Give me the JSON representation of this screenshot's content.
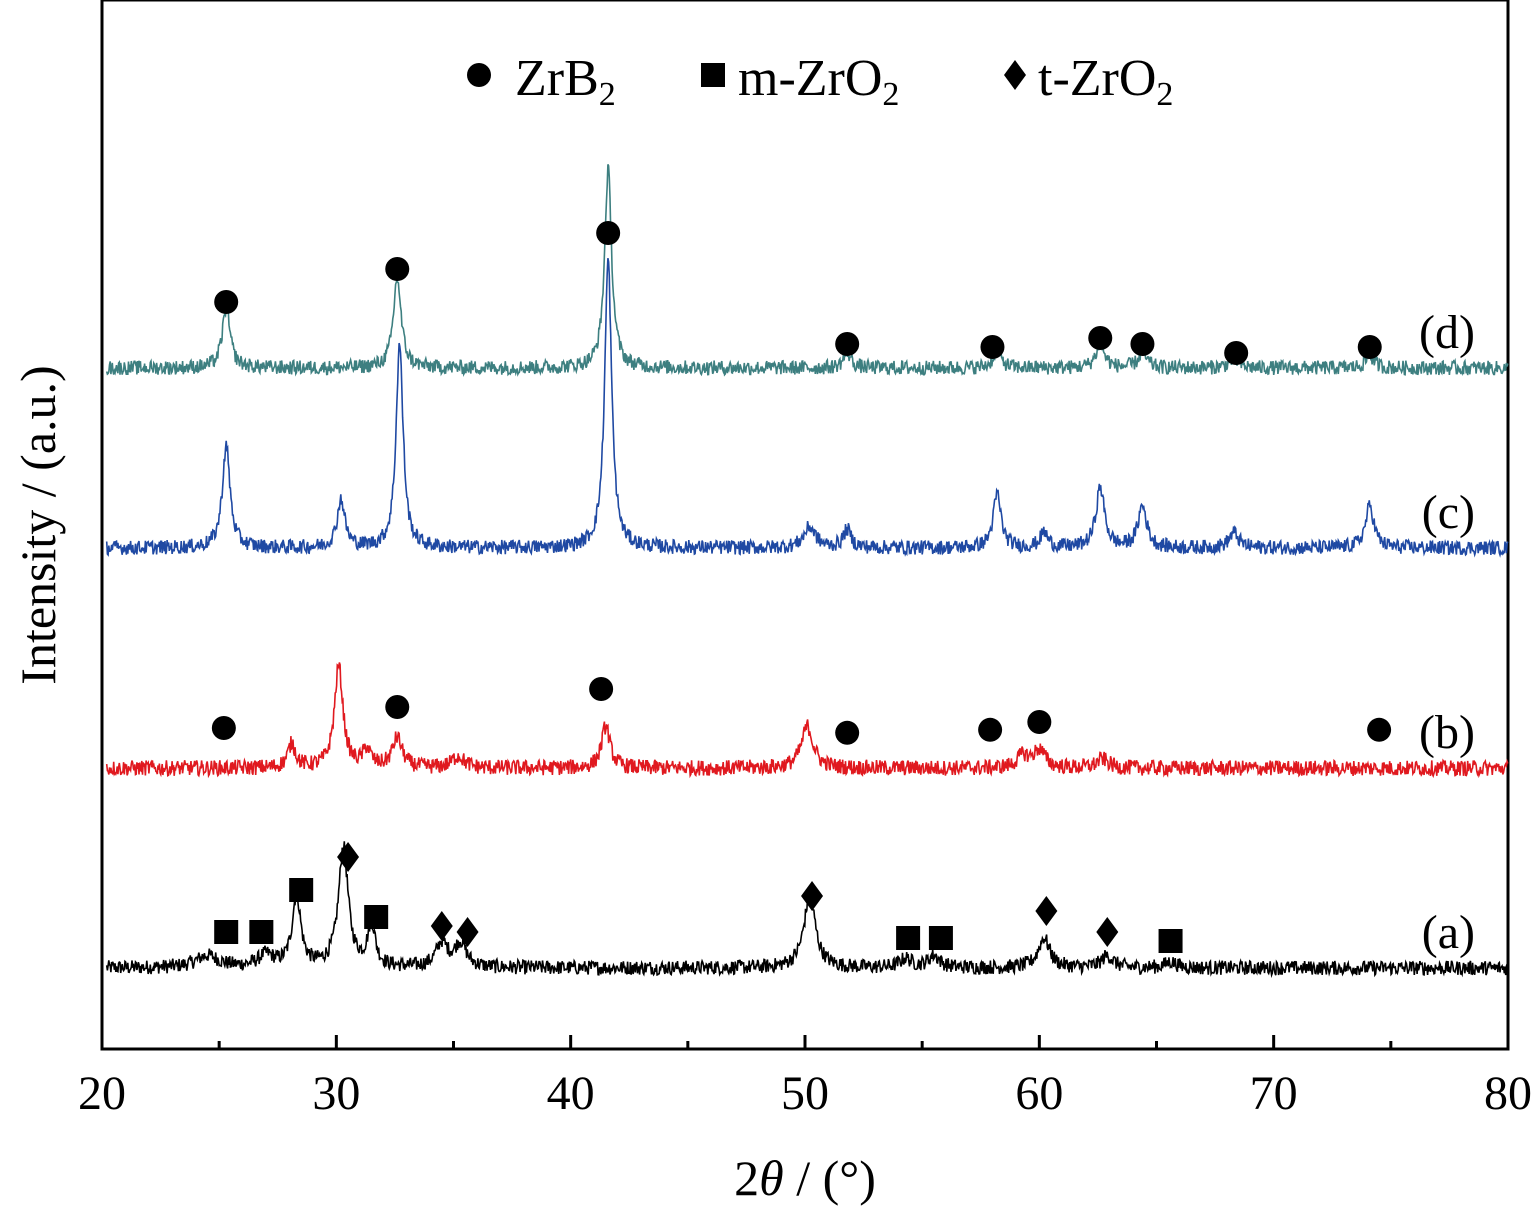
{
  "chart_data": {
    "type": "line",
    "xlabel_prefix": "2",
    "xlabel_symbol": "θ",
    "xlabel_suffix": " / (°)",
    "ylabel": "Intensity / (a.u.)",
    "xlim": [
      20,
      80
    ],
    "xticks": [
      20,
      30,
      40,
      50,
      60,
      70,
      80
    ],
    "xtick_labels": [
      "20",
      "30",
      "40",
      "50",
      "60",
      "70",
      "80"
    ],
    "grid": false,
    "legend_position": "top-center",
    "legend": [
      {
        "marker": "circle",
        "base": "ZrB",
        "sub": "2",
        "tail": ""
      },
      {
        "marker": "square",
        "base": "m-ZrO",
        "sub": "2",
        "tail": ""
      },
      {
        "marker": "diamond",
        "base": "t-ZrO",
        "sub": "2",
        "tail": ""
      }
    ],
    "series": [
      {
        "name": "(a)",
        "color": "#000000",
        "baseline": 0.0,
        "noise": 0.012,
        "peaks": [
          [
            24.5,
            0.02,
            0.6
          ],
          [
            27.0,
            0.02,
            0.4
          ],
          [
            28.3,
            0.12,
            0.22
          ],
          [
            30.3,
            0.2,
            0.25
          ],
          [
            31.5,
            0.07,
            0.2
          ],
          [
            34.5,
            0.04,
            0.3
          ],
          [
            35.3,
            0.04,
            0.3
          ],
          [
            50.2,
            0.12,
            0.3
          ],
          [
            54.3,
            0.015,
            0.3
          ],
          [
            55.5,
            0.02,
            0.3
          ],
          [
            60.2,
            0.05,
            0.3
          ],
          [
            62.9,
            0.02,
            0.3
          ],
          [
            65.6,
            0.01,
            0.3
          ]
        ],
        "markers": [
          {
            "shape": "square",
            "x": 25.3,
            "y": 0.06
          },
          {
            "shape": "square",
            "x": 26.8,
            "y": 0.06
          },
          {
            "shape": "square",
            "x": 28.5,
            "y": 0.13
          },
          {
            "shape": "square",
            "x": 31.7,
            "y": 0.085
          },
          {
            "shape": "diamond",
            "x": 30.5,
            "y": 0.185
          },
          {
            "shape": "diamond",
            "x": 34.5,
            "y": 0.07
          },
          {
            "shape": "diamond",
            "x": 35.6,
            "y": 0.06
          },
          {
            "shape": "diamond",
            "x": 50.3,
            "y": 0.12
          },
          {
            "shape": "square",
            "x": 54.4,
            "y": 0.05
          },
          {
            "shape": "square",
            "x": 55.8,
            "y": 0.05
          },
          {
            "shape": "diamond",
            "x": 60.3,
            "y": 0.095
          },
          {
            "shape": "diamond",
            "x": 62.9,
            "y": 0.06
          },
          {
            "shape": "square",
            "x": 65.6,
            "y": 0.045
          }
        ]
      },
      {
        "name": "(b)",
        "color": "#e0191f",
        "baseline": 0.333,
        "noise": 0.013,
        "peaks": [
          [
            28.1,
            0.04,
            0.2
          ],
          [
            30.1,
            0.17,
            0.22
          ],
          [
            31.3,
            0.03,
            0.2
          ],
          [
            32.6,
            0.05,
            0.25
          ],
          [
            35.2,
            0.02,
            0.3
          ],
          [
            41.5,
            0.07,
            0.22
          ],
          [
            50.1,
            0.07,
            0.3
          ],
          [
            59.3,
            0.02,
            0.3
          ],
          [
            60.0,
            0.03,
            0.3
          ],
          [
            62.7,
            0.015,
            0.3
          ]
        ],
        "markers": [
          {
            "shape": "circle",
            "x": 25.2,
            "y": 0.4
          },
          {
            "shape": "circle",
            "x": 32.6,
            "y": 0.435
          },
          {
            "shape": "circle",
            "x": 41.3,
            "y": 0.465
          },
          {
            "shape": "circle",
            "x": 51.8,
            "y": 0.392
          },
          {
            "shape": "circle",
            "x": 57.9,
            "y": 0.397
          },
          {
            "shape": "circle",
            "x": 60.0,
            "y": 0.41
          },
          {
            "shape": "circle",
            "x": 74.5,
            "y": 0.397
          }
        ]
      },
      {
        "name": "(c)",
        "color": "#1f49a3",
        "baseline": 0.7,
        "noise": 0.012,
        "peaks": [
          [
            25.3,
            0.17,
            0.2
          ],
          [
            30.2,
            0.08,
            0.2
          ],
          [
            32.7,
            0.34,
            0.18
          ],
          [
            41.6,
            0.48,
            0.18
          ],
          [
            50.2,
            0.035,
            0.3
          ],
          [
            51.8,
            0.03,
            0.2
          ],
          [
            58.2,
            0.09,
            0.2
          ],
          [
            60.2,
            0.025,
            0.2
          ],
          [
            62.6,
            0.1,
            0.22
          ],
          [
            64.4,
            0.07,
            0.22
          ],
          [
            68.3,
            0.025,
            0.25
          ],
          [
            74.1,
            0.07,
            0.22
          ]
        ],
        "markers": []
      },
      {
        "name": "(d)",
        "color": "#3d7f80",
        "baseline": 1.0,
        "noise": 0.012,
        "peaks": [
          [
            25.3,
            0.1,
            0.2
          ],
          [
            32.6,
            0.15,
            0.2
          ],
          [
            41.6,
            0.33,
            0.18
          ],
          [
            51.8,
            0.025,
            0.2
          ],
          [
            58.2,
            0.03,
            0.2
          ],
          [
            62.6,
            0.04,
            0.22
          ],
          [
            64.4,
            0.025,
            0.22
          ],
          [
            68.3,
            0.015,
            0.25
          ],
          [
            74.1,
            0.02,
            0.22
          ]
        ],
        "markers": [
          {
            "shape": "circle",
            "x": 25.3,
            "y": 1.11
          },
          {
            "shape": "circle",
            "x": 32.6,
            "y": 1.165
          },
          {
            "shape": "circle",
            "x": 41.6,
            "y": 1.225
          },
          {
            "shape": "circle",
            "x": 51.8,
            "y": 1.04
          },
          {
            "shape": "circle",
            "x": 58.0,
            "y": 1.035
          },
          {
            "shape": "circle",
            "x": 62.6,
            "y": 1.05
          },
          {
            "shape": "circle",
            "x": 64.4,
            "y": 1.04
          },
          {
            "shape": "circle",
            "x": 68.4,
            "y": 1.025
          },
          {
            "shape": "circle",
            "x": 74.1,
            "y": 1.035
          }
        ]
      }
    ]
  }
}
